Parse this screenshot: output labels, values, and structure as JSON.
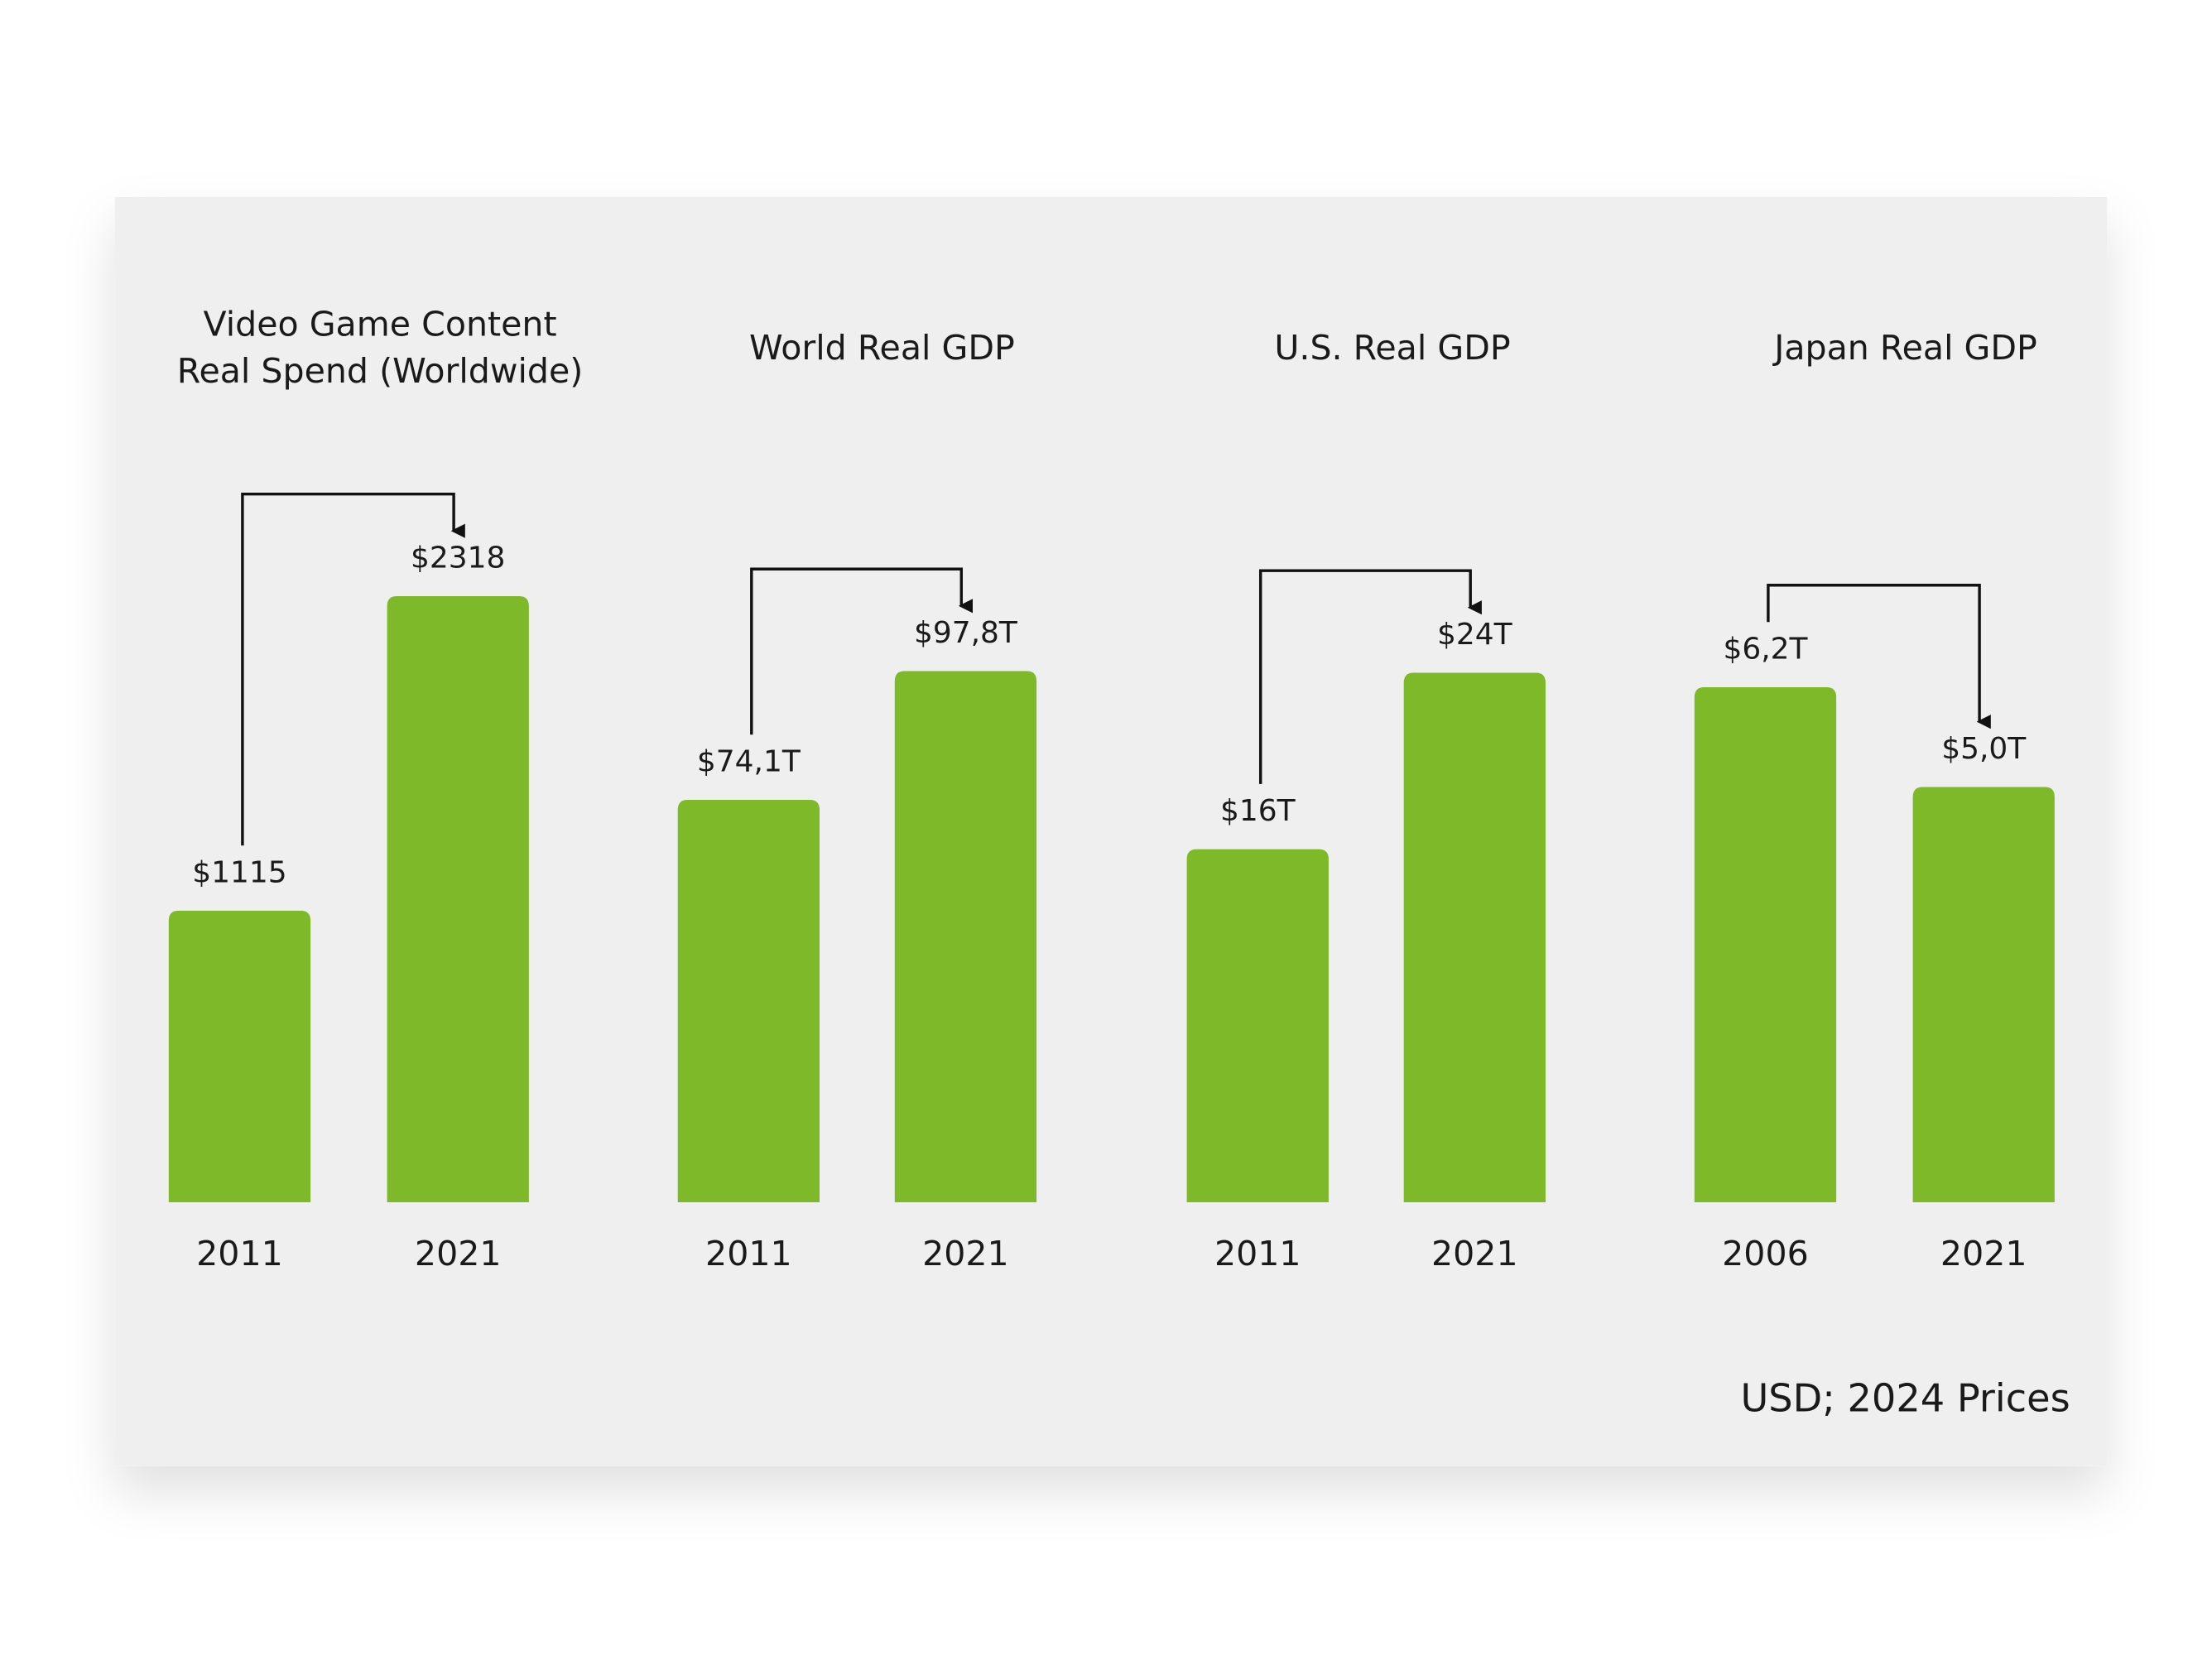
{
  "chart_data": [
    {
      "type": "bar",
      "title": [
        "Video Game Content",
        "Real Spend (Worldwide)"
      ],
      "categories": [
        "2011",
        "2021"
      ],
      "values": [
        1115,
        2318
      ],
      "value_labels": [
        "$1115",
        "$2318"
      ],
      "color": "#7db928",
      "ylim": [
        0,
        2700
      ]
    },
    {
      "type": "bar",
      "title": [
        "World Real GDP"
      ],
      "categories": [
        "2011",
        "2021"
      ],
      "values": [
        74.1,
        97.8
      ],
      "value_labels": [
        "$74,1T",
        "$97,8T"
      ],
      "color": "#7db928",
      "ylim": [
        0,
        130
      ]
    },
    {
      "type": "bar",
      "title": [
        "U.S. Real GDP"
      ],
      "categories": [
        "2011",
        "2021"
      ],
      "values": [
        16,
        24
      ],
      "value_labels": [
        "$16T",
        "$24T"
      ],
      "color": "#7db928",
      "ylim": [
        0,
        32
      ]
    },
    {
      "type": "bar",
      "title": [
        "Japan Real GDP"
      ],
      "categories": [
        "2006",
        "2021"
      ],
      "values": [
        6.2,
        5.0
      ],
      "value_labels": [
        "$6,2T",
        "$5,0T"
      ],
      "color": "#7db928",
      "ylim": [
        0,
        8.5
      ]
    }
  ],
  "note": "USD; 2024 Prices"
}
